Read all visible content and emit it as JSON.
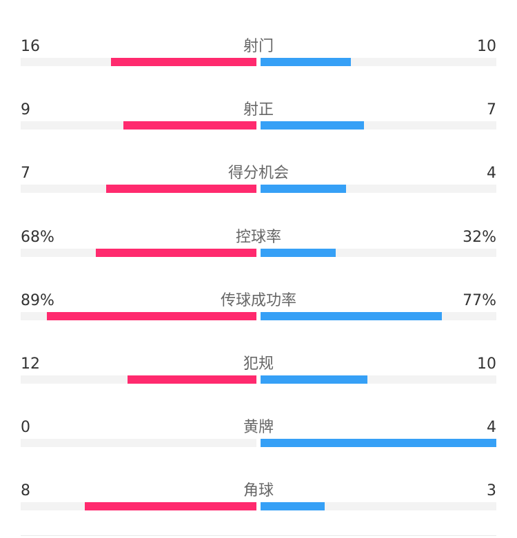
{
  "colors": {
    "home": "#FF2A6E",
    "away": "#36A0F6",
    "track": "#F3F3F3"
  },
  "stats": [
    {
      "label": "射门",
      "home": "16",
      "away": "10",
      "home_fill": 0.617,
      "away_fill": 0.383
    },
    {
      "label": "射正",
      "home": "9",
      "away": "7",
      "home_fill": 0.564,
      "away_fill": 0.439
    },
    {
      "label": "得分机会",
      "home": "7",
      "away": "4",
      "home_fill": 0.637,
      "away_fill": 0.363
    },
    {
      "label": "控球率",
      "home": "68%",
      "away": "32%",
      "home_fill": 0.68,
      "away_fill": 0.32
    },
    {
      "label": "传球成功率",
      "home": "89%",
      "away": "77%",
      "home_fill": 0.89,
      "away_fill": 0.77
    },
    {
      "label": "犯规",
      "home": "12",
      "away": "10",
      "home_fill": 0.547,
      "away_fill": 0.453
    },
    {
      "label": "黄牌",
      "home": "0",
      "away": "4",
      "home_fill": 0,
      "away_fill": 1.0
    },
    {
      "label": "角球",
      "home": "8",
      "away": "3",
      "home_fill": 0.728,
      "away_fill": 0.272
    }
  ]
}
